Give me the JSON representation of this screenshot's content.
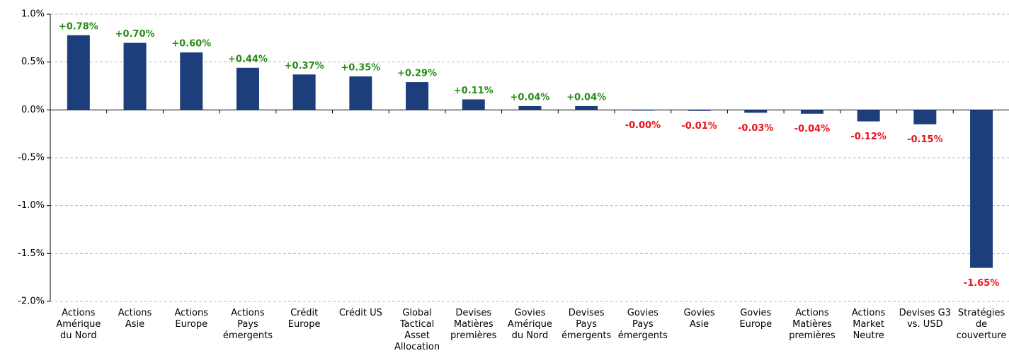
{
  "chart_data": {
    "type": "bar",
    "categories": [
      "Actions Amérique du Nord",
      "Actions Asie",
      "Actions Europe",
      "Actions Pays émergents",
      "Crédit Europe",
      "Crédit US",
      "Global Tactical Asset Allocation",
      "Devises Matières premières",
      "Govies Amérique du Nord",
      "Devises Pays émergents",
      "Govies Pays émergents",
      "Govies Asie",
      "Govies Europe",
      "Actions Matières premières",
      "Actions Market Neutre",
      "Devises G3 vs. USD",
      "Stratégies de couverture"
    ],
    "values": [
      0.78,
      0.7,
      0.6,
      0.44,
      0.37,
      0.35,
      0.29,
      0.11,
      0.04,
      0.04,
      -0.001,
      -0.01,
      -0.03,
      -0.04,
      -0.12,
      -0.15,
      -1.65
    ],
    "value_labels": [
      "+0.78%",
      "+0.70%",
      "+0.60%",
      "+0.44%",
      "+0.37%",
      "+0.35%",
      "+0.29%",
      "+0.11%",
      "+0.04%",
      "+0.04%",
      "-0.00%",
      "-0.01%",
      "-0.03%",
      "-0.04%",
      "-0.12%",
      "-0.15%",
      "-1.65%"
    ],
    "color": "#1c3f7c",
    "positive_label_color": "#2a8a1a",
    "negative_label_color": "#e8121c",
    "ylim": [
      -2.0,
      1.0
    ],
    "yticks": [
      {
        "value": -2.0,
        "label": "-2.0%"
      },
      {
        "value": -1.5,
        "label": "-1.5%"
      },
      {
        "value": -1.0,
        "label": "-1.0%"
      },
      {
        "value": -0.5,
        "label": "-0.5%"
      },
      {
        "value": 0,
        "label": "0.0%"
      },
      {
        "value": 0.5,
        "label": "0.5%"
      },
      {
        "value": 1.0,
        "label": "1.0%"
      }
    ],
    "grid": true
  }
}
